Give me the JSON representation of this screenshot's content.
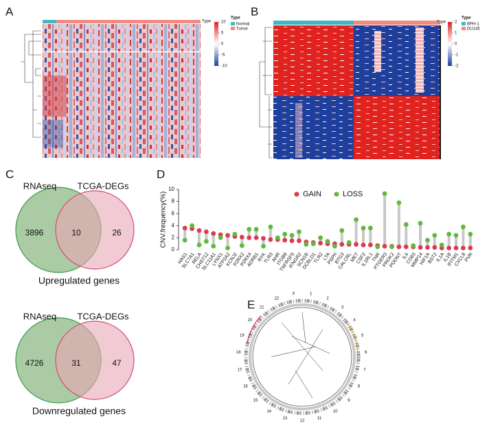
{
  "panels": [
    "A",
    "B",
    "C",
    "D",
    "E"
  ],
  "heatmap_a": {
    "legend_title": "Type",
    "groups": [
      "Normal",
      "Tumor"
    ],
    "scale_ticks": [
      10,
      5,
      0,
      -5,
      -10
    ],
    "top_label": "Type"
  },
  "heatmap_b": {
    "legend_title": "Type",
    "groups": [
      "BPH-1",
      "DU145"
    ],
    "scale_ticks": [
      2,
      1,
      0,
      -1,
      -2
    ],
    "top_label": "Type"
  },
  "venn": [
    {
      "set_a": "RNAseq",
      "set_b": "TCGA-DEGs",
      "only_a": 3896,
      "both": 10,
      "only_b": 26,
      "caption": "Upregulated genes"
    },
    {
      "set_a": "RNAseq",
      "set_b": "TCGA-DEGs",
      "only_a": 4726,
      "both": 31,
      "only_b": 47,
      "caption": "Downregulated genes"
    }
  ],
  "chart_data": {
    "type": "lollipop",
    "y_label": "CNV.frequency(%)",
    "categories": [
      "HAS1",
      "SLC7A1",
      "RELA",
      "CHST12",
      "SLC11A1",
      "LYNX1",
      "ATP2A2",
      "KCNJ2",
      "P2RX2",
      "P2RX4",
      "ADRB1",
      "RYK",
      "TLR3",
      "AHR",
      "ITGB8",
      "TNFRSF9",
      "IFNGR2",
      "SCN1B",
      "DCBLD1",
      "TLR2",
      "LTA",
      "PSPH",
      "BTG3",
      "CALCRL",
      "MET",
      "CSF2",
      "IL1RL1",
      "TNR",
      "PTGER3",
      "PROK2",
      "PODNT",
      "IL6",
      "CD83",
      "MMP14",
      "HIF1A",
      "BST2",
      "IL1A",
      "IL1B",
      "IFITM1",
      "CXCL8",
      "PVR"
    ],
    "series": [
      {
        "name": "GAIN",
        "color": "#dc3a50",
        "values": [
          3.6,
          3.5,
          3.2,
          3.0,
          2.7,
          2.5,
          2.4,
          2.2,
          2.1,
          2.0,
          2.0,
          1.9,
          1.7,
          1.7,
          1.6,
          1.5,
          1.5,
          1.3,
          1.2,
          1.1,
          1.0,
          1.0,
          0.9,
          0.9,
          0.9,
          0.8,
          0.8,
          0.7,
          0.6,
          0.6,
          0.5,
          0.5,
          0.5,
          0.4,
          0.4,
          0.4,
          0.3,
          0.3,
          0.3,
          0.3,
          0.3
        ]
      },
      {
        "name": "LOSS",
        "color": "#5cba3c",
        "values": [
          1.6,
          4.0,
          0.8,
          1.4,
          0.6,
          2.0,
          0.3,
          2.6,
          0.7,
          3.4,
          3.4,
          0.6,
          3.8,
          2.0,
          2.6,
          2.4,
          3.0,
          0.9,
          1.0,
          2.0,
          1.4,
          0.6,
          3.2,
          1.2,
          5.0,
          3.6,
          3.6,
          0.5,
          9.3,
          0.5,
          7.8,
          4.2,
          0.7,
          4.4,
          1.6,
          2.4,
          0.8,
          2.6,
          2.4,
          3.8,
          2.6
        ]
      }
    ],
    "ylim": [
      0,
      10
    ],
    "yticks": [
      0,
      2,
      4,
      6,
      8,
      10
    ],
    "legend": "top",
    "stem_color": "#c8c8c8"
  },
  "circos": {
    "chromosomes": [
      "1",
      "2",
      "3",
      "4",
      "5",
      "6",
      "7",
      "8",
      "9",
      "10",
      "11",
      "12",
      "13",
      "14",
      "15",
      "16",
      "17",
      "18",
      "19",
      "20",
      "21",
      "22",
      "X"
    ]
  }
}
